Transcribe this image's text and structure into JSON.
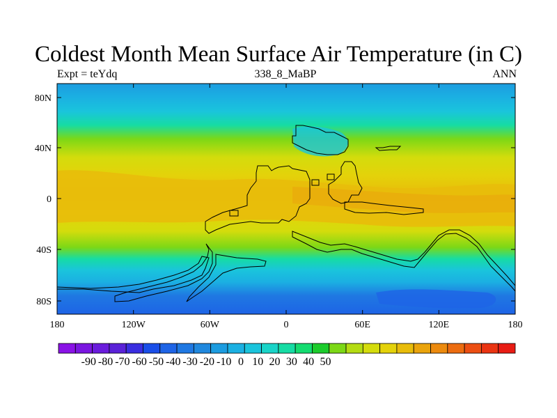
{
  "title": "Coldest Month Mean Surface Air Temperature (in C)",
  "subtitle_left": "Expt = teYdq",
  "subtitle_center": "338_8_MaBP",
  "subtitle_right": "ANN",
  "y_ticks": [
    "80N",
    "40N",
    "0",
    "40S",
    "80S"
  ],
  "x_ticks": [
    "180",
    "120W",
    "60W",
    "0",
    "60E",
    "120E",
    "180"
  ],
  "colorbar": {
    "labels": [
      "-90",
      "-80",
      "-70",
      "-60",
      "-50",
      "-40",
      "-30",
      "-20",
      "-10",
      "0",
      "10",
      "20",
      "30",
      "40",
      "50"
    ],
    "colors": [
      "#8a12e6",
      "#7a16e0",
      "#6a1cdc",
      "#5a22d8",
      "#3a2ee0",
      "#1a4ee8",
      "#1e64e6",
      "#1f78e2",
      "#2088de",
      "#1c9ce0",
      "#1bb0e2",
      "#1ac4dc",
      "#19d4c8",
      "#16dca4",
      "#14dc70",
      "#1ccc2c",
      "#7cd816",
      "#b4dc12",
      "#d4dc0c",
      "#e4d20a",
      "#e8bc0a",
      "#eaa40c",
      "#ec8a0e",
      "#ec6c10",
      "#ec4e12",
      "#ea3412",
      "#e81c14"
    ]
  },
  "colors": {
    "80N": "#1c9ce0",
    "60N": "#1ac4dc",
    "40N": "#7cd816",
    "20N": "#e4d20a",
    "0": "#e8bc0a",
    "20S": "#d4dc0c",
    "40S": "#14dc70",
    "60S": "#1bb0e2",
    "80S": "#1f78e2"
  }
}
